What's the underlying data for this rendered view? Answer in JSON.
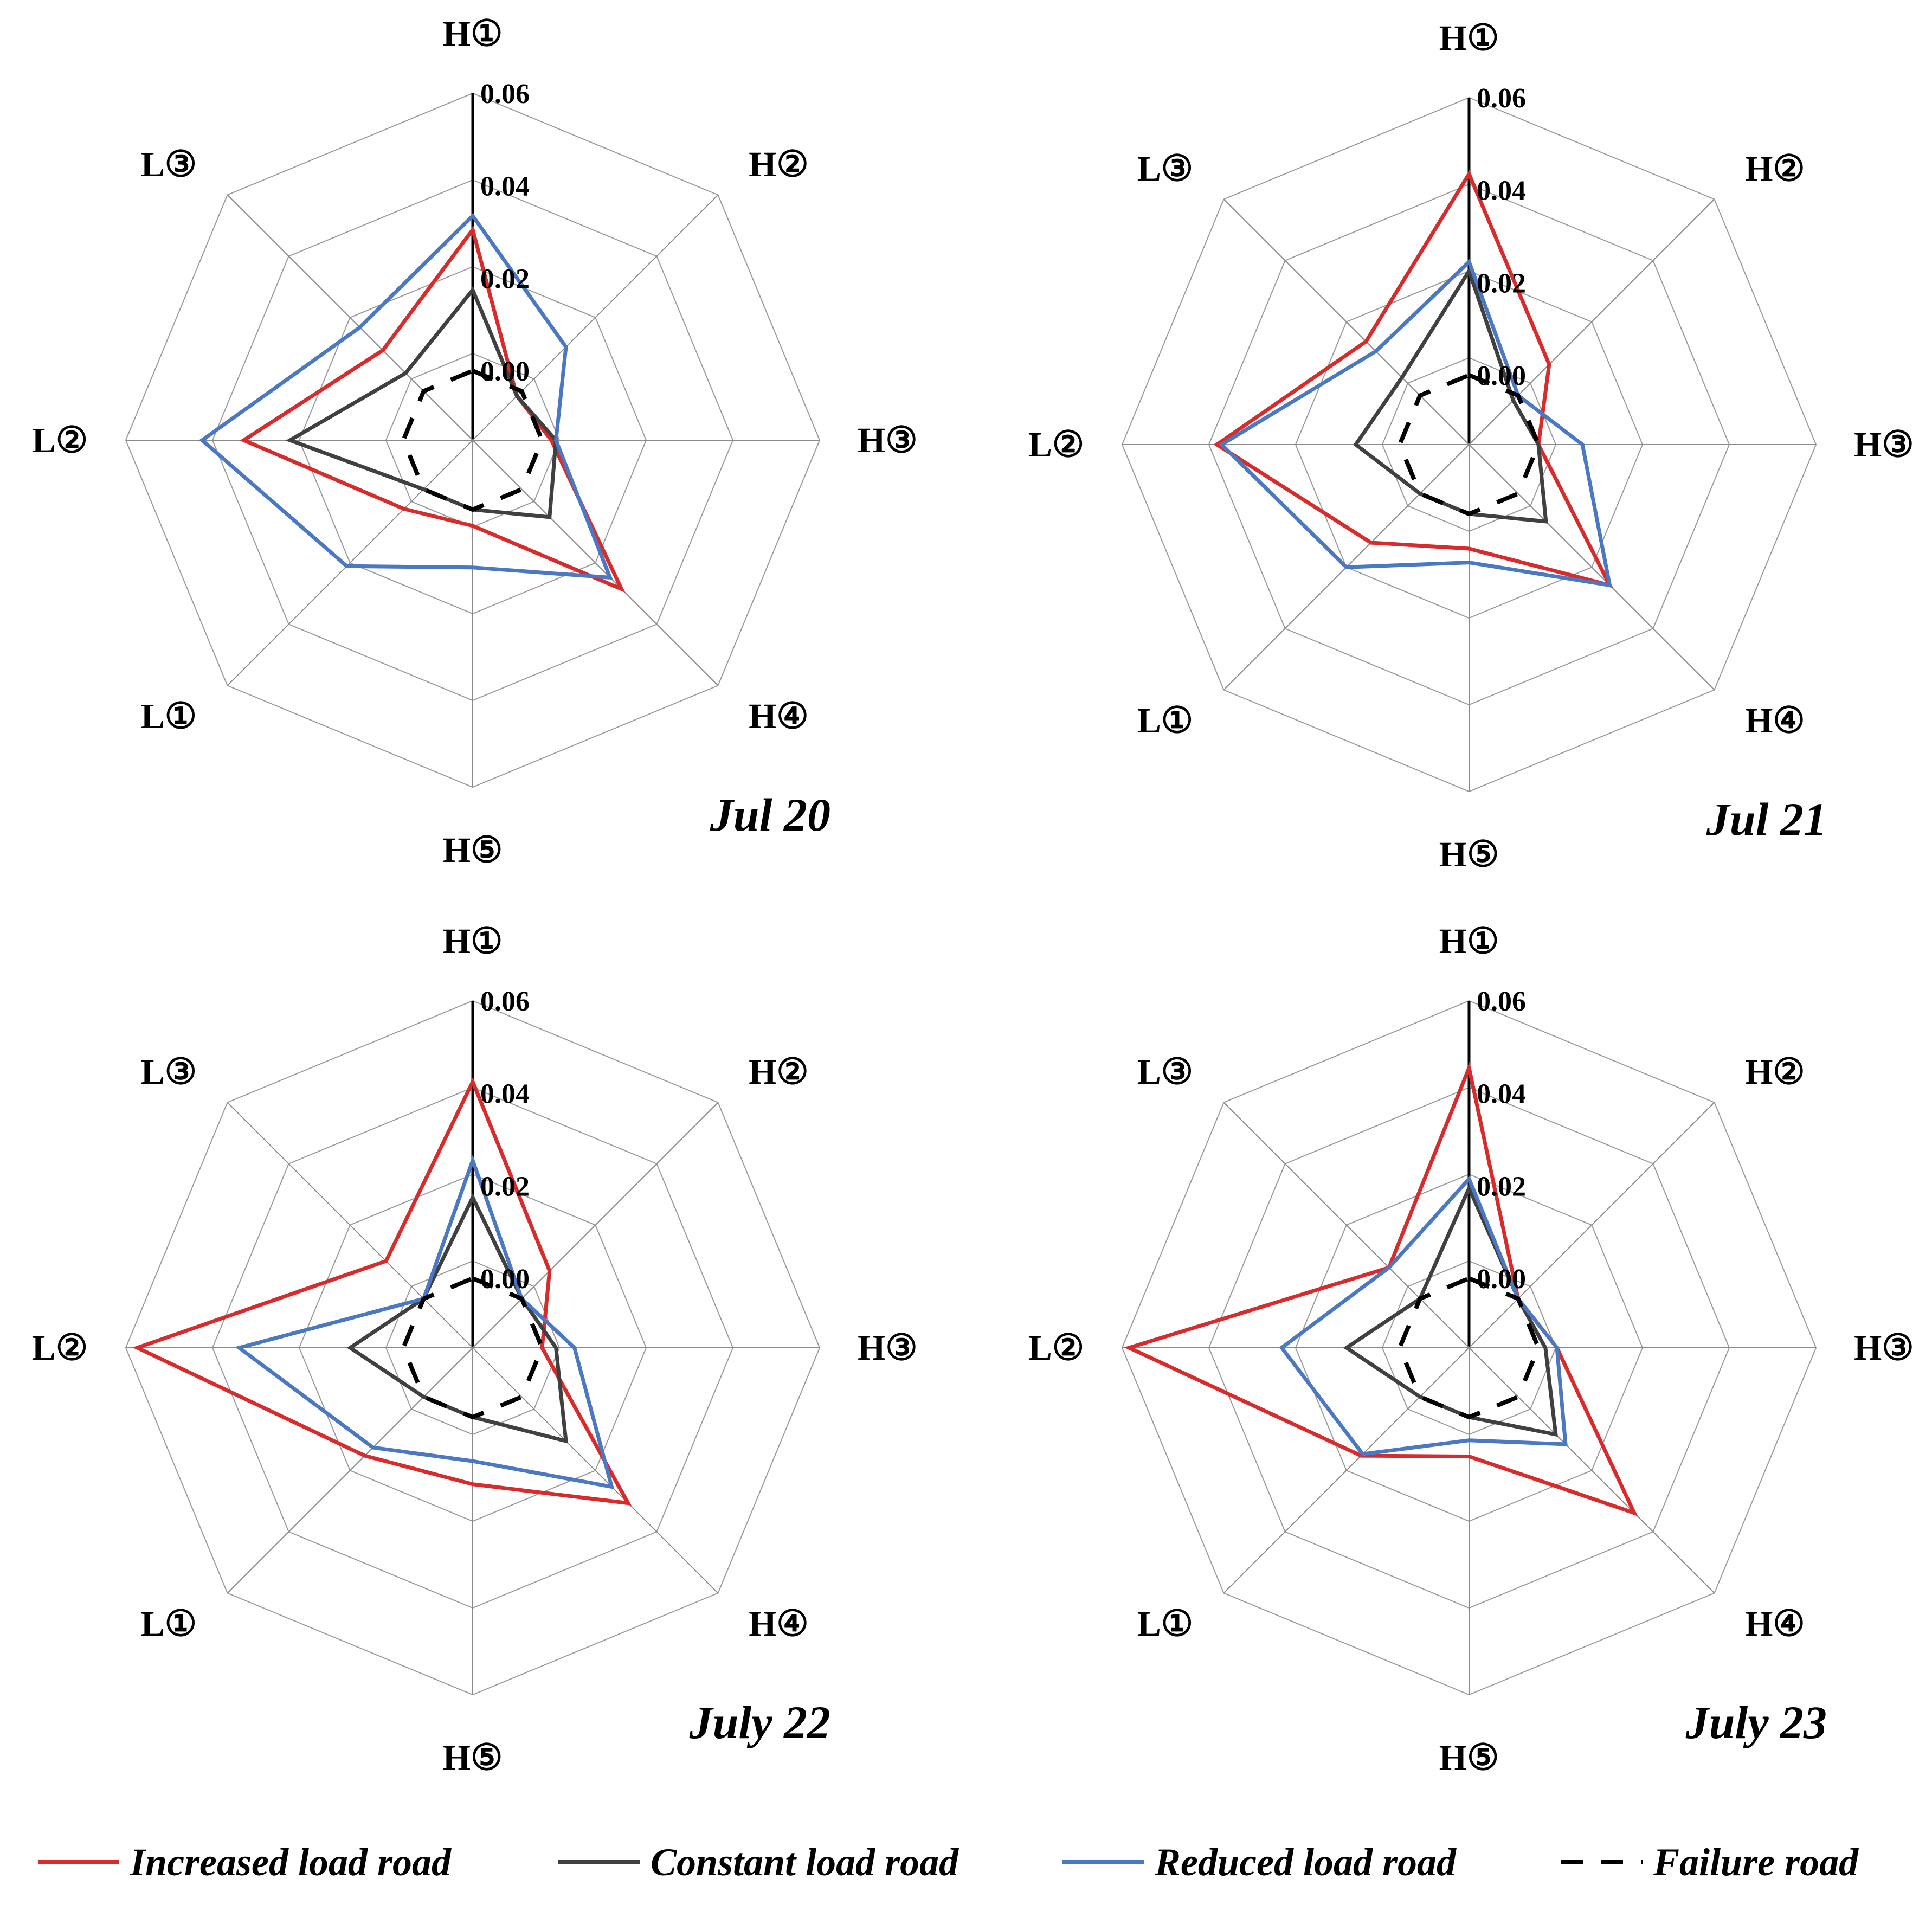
{
  "figure": {
    "legend": [
      {
        "name": "Increased load road",
        "color": "#d92b2b",
        "dash": "solid"
      },
      {
        "name": "Constant load road",
        "color": "#404040",
        "dash": "solid"
      },
      {
        "name": "Reduced load road",
        "color": "#4a78c2",
        "dash": "solid"
      },
      {
        "name": "Failure road",
        "color": "#000000",
        "dash": "dashed"
      }
    ]
  },
  "chart_data": [
    {
      "type": "radar",
      "title": "Jul 20",
      "axes": [
        "H①",
        "H②",
        "H③",
        "H④",
        "H⑤",
        "L①",
        "L②",
        "L③"
      ],
      "ticks": [
        "0.00",
        "0.02",
        "0.04",
        "0.06"
      ],
      "rlim": [
        -0.015,
        0.06
      ],
      "series": [
        {
          "name": "Increased load road",
          "values": [
            0.0305,
            -0.0015,
            0.002,
            0.0305,
            0.0035,
            0.006,
            0.0345,
            0.0125
          ]
        },
        {
          "name": "Constant load road",
          "values": [
            0.0175,
            -0.0015,
            0.003,
            0.0085,
            0.0,
            0.0,
            0.0245,
            0.0055
          ]
        },
        {
          "name": "Reduced load road",
          "values": [
            0.0335,
            0.0135,
            0.003,
            0.027,
            0.0125,
            0.0235,
            0.0435,
            0.0195
          ]
        },
        {
          "name": "Failure road",
          "values": [
            0.0,
            0.0,
            0.0,
            0.0,
            0.0,
            0.0,
            0.0,
            0.0
          ]
        }
      ]
    },
    {
      "type": "radar",
      "title": "Jul 21",
      "axes": [
        "H①",
        "H②",
        "H③",
        "H④",
        "H⑤",
        "L①",
        "L②",
        "L③"
      ],
      "ticks": [
        "0.00",
        "0.02",
        "0.04",
        "0.06"
      ],
      "rlim": [
        -0.015,
        0.06
      ],
      "series": [
        {
          "name": "Increased load road",
          "values": [
            0.0435,
            0.0095,
            0.0,
            0.028,
            0.0075,
            0.015,
            0.0395,
            0.0165
          ]
        },
        {
          "name": "Constant load road",
          "values": [
            0.0225,
            -0.0015,
            0.0,
            0.0085,
            0.0,
            0.0,
            0.0095,
            0.0055
          ]
        },
        {
          "name": "Reduced load road",
          "values": [
            0.0245,
            0.0,
            0.0095,
            0.028,
            0.0105,
            0.0225,
            0.0385,
            0.0135
          ]
        },
        {
          "name": "Failure road",
          "values": [
            0.0,
            0.0,
            0.0,
            0.0,
            0.0,
            0.0,
            0.0,
            0.0
          ]
        }
      ]
    },
    {
      "type": "radar",
      "title": "July 22",
      "axes": [
        "H①",
        "H②",
        "H③",
        "H④",
        "H⑤",
        "L①",
        "L②",
        "L③"
      ],
      "ticks": [
        "0.00",
        "0.02",
        "0.04",
        "0.06"
      ],
      "rlim": [
        -0.015,
        0.06
      ],
      "series": [
        {
          "name": "Increased load road",
          "values": [
            0.0425,
            0.0085,
            0.0,
            0.0325,
            0.0145,
            0.018,
            0.0575,
            0.0115
          ]
        },
        {
          "name": "Constant load road",
          "values": [
            0.0175,
            0.0,
            0.003,
            0.0135,
            0.0,
            0.0,
            0.0115,
            0.0
          ]
        },
        {
          "name": "Reduced load road",
          "values": [
            0.0255,
            0.0,
            0.007,
            0.0275,
            0.0095,
            0.0155,
            0.0355,
            0.0
          ]
        },
        {
          "name": "Failure road",
          "values": [
            0.0,
            0.0,
            0.0,
            0.0,
            0.0,
            0.0,
            0.0,
            0.0
          ]
        }
      ]
    },
    {
      "type": "radar",
      "title": "July 23",
      "axes": [
        "H①",
        "H②",
        "H③",
        "H④",
        "H⑤",
        "L①",
        "L②",
        "L③"
      ],
      "ticks": [
        "0.00",
        "0.02",
        "0.04",
        "0.06"
      ],
      "rlim": [
        -0.015,
        0.06
      ],
      "series": [
        {
          "name": "Increased load road",
          "values": [
            0.0455,
            0.0,
            0.004,
            0.0355,
            0.0085,
            0.018,
            0.0585,
            0.0095
          ]
        },
        {
          "name": "Constant load road",
          "values": [
            0.0195,
            0.0,
            0.0015,
            0.0115,
            0.0,
            0.0,
            0.0115,
            0.0
          ]
        },
        {
          "name": "Reduced load road",
          "values": [
            0.0215,
            0.0,
            0.004,
            0.0145,
            0.005,
            0.0175,
            0.0255,
            0.0095
          ]
        },
        {
          "name": "Failure road",
          "values": [
            0.0,
            0.0,
            0.0,
            0.0,
            0.0,
            0.0,
            0.0,
            0.0
          ]
        }
      ]
    }
  ]
}
